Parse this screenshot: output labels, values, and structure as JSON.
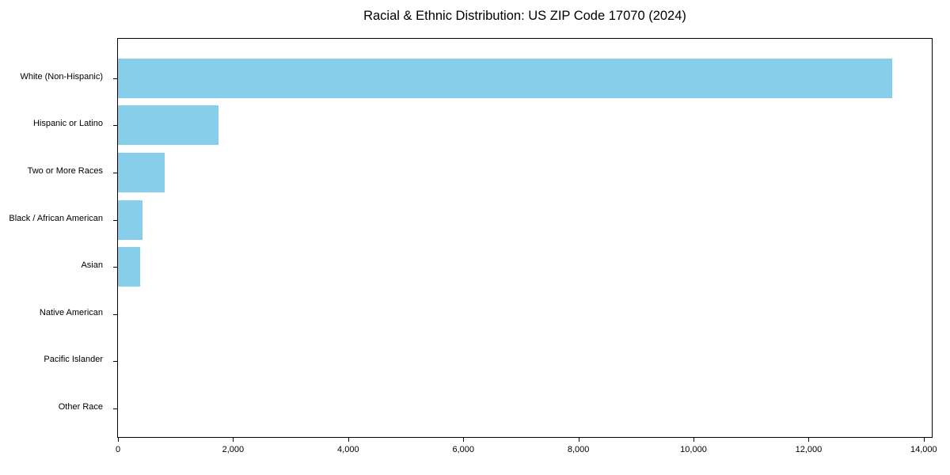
{
  "chart_data": {
    "type": "bar",
    "orientation": "horizontal",
    "title": "Racial & Ethnic Distribution: US ZIP Code 17070 (2024)",
    "categories": [
      "White (Non-Hispanic)",
      "Hispanic or Latino",
      "Two or More Races",
      "Black / African American",
      "Asian",
      "Native American",
      "Pacific Islander",
      "Other Race"
    ],
    "values": [
      13450,
      1745,
      810,
      425,
      385,
      0,
      0,
      0
    ],
    "xlabel": "",
    "ylabel": "",
    "xlim": [
      0,
      14140
    ],
    "x_ticks": [
      0,
      2000,
      4000,
      6000,
      8000,
      10000,
      12000,
      14000
    ],
    "x_tick_labels": [
      "0",
      "2,000",
      "4,000",
      "6,000",
      "8,000",
      "10,000",
      "12,000",
      "14,000"
    ],
    "bar_color": "#87CEEB",
    "spine_color": "#000000",
    "text_color": "#000000",
    "background_color": "#ffffff",
    "grid": false,
    "legend": null
  }
}
